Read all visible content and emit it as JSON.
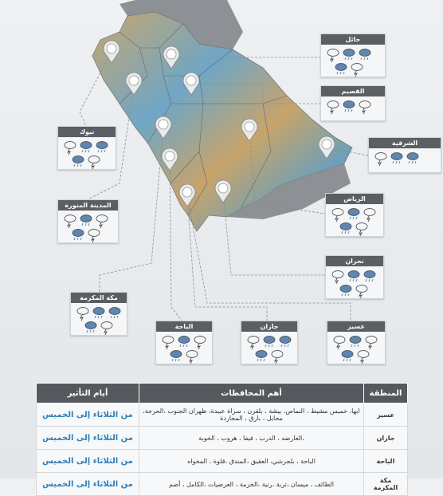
{
  "cards": [
    {
      "label": "حائل"
    },
    {
      "label": "القصيم"
    },
    {
      "label": "الشرقية"
    },
    {
      "label": "الرياض"
    },
    {
      "label": "نجران"
    },
    {
      "label": "عسير"
    },
    {
      "label": "جازان"
    },
    {
      "label": "الباحة"
    },
    {
      "label": "مكة المكرمة"
    },
    {
      "label": "المدينة المنورة"
    },
    {
      "label": "تبوك"
    }
  ],
  "table": {
    "headers": [
      "المنطقة",
      "أهم المحافظات",
      "أيام التأثير"
    ],
    "rows": [
      [
        "عسير",
        "ابها، خميس مشيط ، النماص، بيشة ، بلقرن ، سراة عبيدة، ظهران الجنوب ،الحرجة، محايل ، بارق ، المجاردة",
        "من الثلاثاء إلى الخميس"
      ],
      [
        "جازان",
        "،العارضه ، الدرب ، فيفا ، هروب ، الخوبة",
        "من الثلاثاء إلى الخميس"
      ],
      [
        "الباحة",
        "الباحة ، بلجرشي، العقيق ،المندق ،قلوة ، المخواه",
        "من الثلاثاء إلى الخميس"
      ],
      [
        "مكة المكرمة",
        "الطائف ، ميسان ،تربة ،رنية ،الخرمة ، العرضيات ،الكامل ، أضم",
        "من الثلاثاء إلى الخميس"
      ]
    ]
  }
}
